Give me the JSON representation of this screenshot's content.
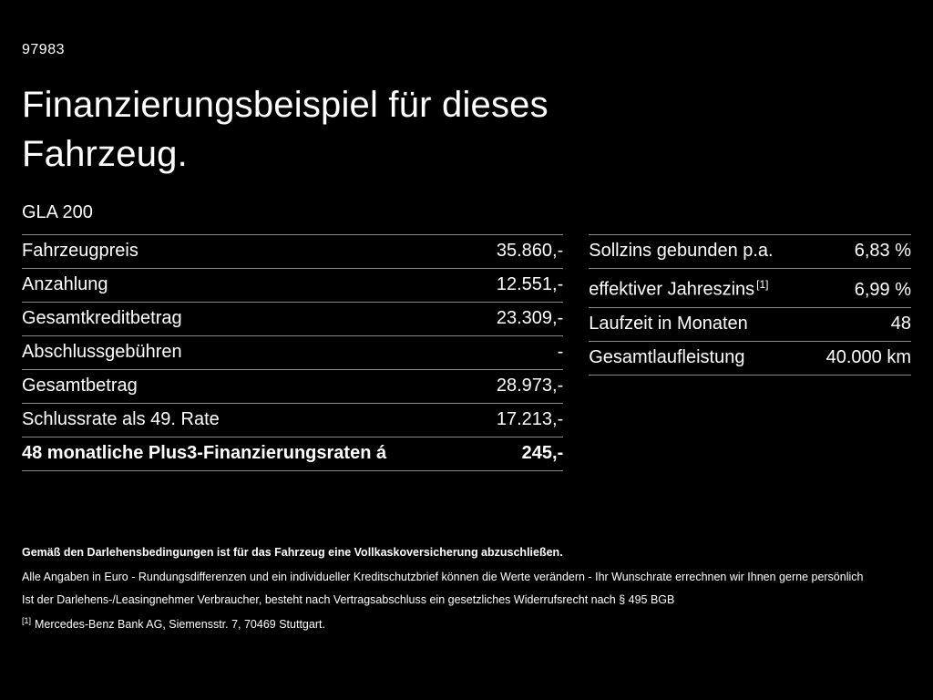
{
  "header": {
    "code": "97983",
    "title_line1": "Finanzierungsbeispiel für dieses",
    "title_line2": "Fahrzeug.",
    "model": "GLA 200"
  },
  "left_table": {
    "rows": [
      {
        "label": "Fahrzeugpreis",
        "value": "35.860,-"
      },
      {
        "label": "Anzahlung",
        "value": "12.551,-"
      },
      {
        "label": "Gesamtkreditbetrag",
        "value": "23.309,-"
      },
      {
        "label": "Abschlussgebühren",
        "value": "-"
      },
      {
        "label": "Gesamtbetrag",
        "value": "28.973,-"
      },
      {
        "label": "Schlussrate als 49. Rate",
        "value": "17.213,-"
      },
      {
        "label": "48 monatliche Plus3-Finanzierungsraten á",
        "value": "245,-"
      }
    ]
  },
  "right_table": {
    "rows": [
      {
        "label": "Sollzins gebunden p.a.",
        "sup": "",
        "value": "6,83 %"
      },
      {
        "label": "effektiver Jahreszins",
        "sup": "[1]",
        "value": "6,99 %"
      },
      {
        "label": "Laufzeit in Monaten",
        "sup": "",
        "value": "48"
      },
      {
        "label": "Gesamtlaufleistung",
        "sup": "",
        "value": "40.000 km"
      }
    ]
  },
  "footer": {
    "line_bold": "Gemäß den Darlehensbedingungen ist für das Fahrzeug eine Vollkaskoversicherung abzuschließen.",
    "line2": "Alle Angaben in Euro - Rundungsdifferenzen und ein individueller Kreditschutzbrief können die Werte verändern - Ihr Wunschrate errechnen wir Ihnen gerne persönlich",
    "line3": "Ist der Darlehens-/Leasingnehmer Verbraucher, besteht nach Vertragsabschluss ein gesetzliches Widerrufsrecht nach § 495 BGB",
    "note_marker": "[1]",
    "note_text": "Mercedes-Benz Bank AG, Siemensstr. 7, 70469 Stuttgart."
  }
}
